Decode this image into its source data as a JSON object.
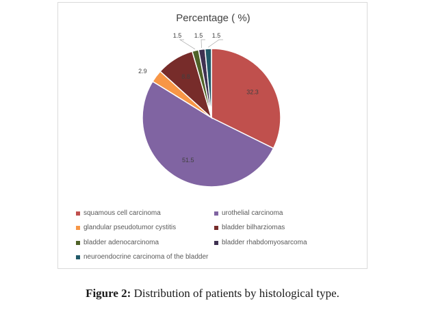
{
  "chart_data": {
    "type": "pie",
    "title": "Percentage ( %)",
    "categories": [
      "squamous cell carcinoma",
      "urothelial carcinoma",
      "glandular pseudotumor cystitis",
      "bladder bilharziomas",
      "bladder adenocarcinoma",
      "bladder rhabdomyosarcoma",
      "neuroendocrine carcinoma of the bladder"
    ],
    "values": [
      32.3,
      51.5,
      2.9,
      8.8,
      1.5,
      1.5,
      1.5
    ],
    "value_labels": [
      "32.3",
      "51.5",
      "2.9",
      "8.8",
      "1.5",
      "1.5",
      "1.5"
    ],
    "colors": [
      "#c0504d",
      "#8064a2",
      "#f79646",
      "#772c2a",
      "#4f6228",
      "#3f3151",
      "#215968"
    ],
    "legend_position": "bottom"
  },
  "caption": {
    "label": "Figure 2:",
    "text": " Distribution of patients by histological type."
  }
}
